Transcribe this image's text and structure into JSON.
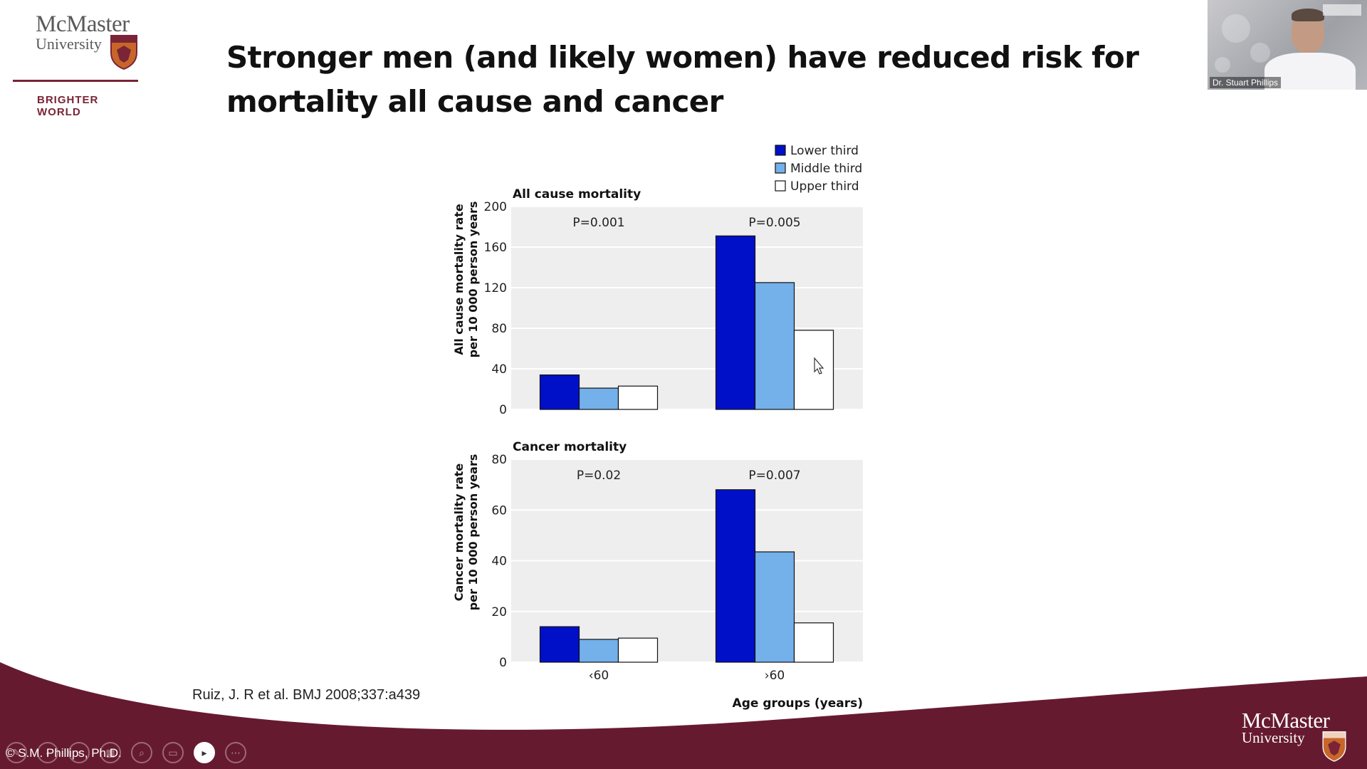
{
  "logo": {
    "name_line1": "McMaster",
    "name_line2": "University",
    "tagline": "BRIGHTER WORLD",
    "brand_color": "#7a2436"
  },
  "slide": {
    "title": "Stronger men (and likely women) have reduced risk for mortality all cause and cancer",
    "citation": "Ruiz, J. R et al. BMJ 2008;337:a439"
  },
  "webcam": {
    "name": "Dr. Stuart Phillips"
  },
  "footer": {
    "logo_line1": "McMaster",
    "logo_line2": "University",
    "copyright": "© S.M. Phillips, Ph.D."
  },
  "toolbar": {
    "icons": [
      "pen-icon",
      "back-icon",
      "forward-icon",
      "slides-icon",
      "zoom-icon",
      "subtitles-icon",
      "camera-icon",
      "more-icon"
    ]
  },
  "chart_data": [
    {
      "type": "bar",
      "title": "All cause mortality",
      "ylabel": "All cause mortality rate per 10 000 person years",
      "xlabel": "",
      "categories": [
        "<60",
        ">60"
      ],
      "ylim": [
        0,
        200
      ],
      "yticks": [
        0,
        40,
        80,
        120,
        160,
        200
      ],
      "series": [
        {
          "name": "Lower third",
          "values": [
            34,
            171
          ],
          "color": "#0010c8"
        },
        {
          "name": "Middle third",
          "values": [
            21,
            125
          ],
          "color": "#74b0ea"
        },
        {
          "name": "Upper third",
          "values": [
            23,
            78
          ],
          "color": "#ffffff"
        }
      ],
      "annotations": [
        "P=0.001",
        "P=0.005"
      ],
      "legend": "top-right",
      "grid": true
    },
    {
      "type": "bar",
      "title": "Cancer mortality",
      "ylabel": "Cancer mortality rate per 10 000 person years",
      "xlabel": "Age groups (years)",
      "categories": [
        "‹60",
        "›60"
      ],
      "ylim": [
        0,
        80
      ],
      "yticks": [
        0,
        20,
        40,
        60,
        80
      ],
      "series": [
        {
          "name": "Lower third",
          "values": [
            14,
            68
          ],
          "color": "#0010c8"
        },
        {
          "name": "Middle third",
          "values": [
            9,
            43.5
          ],
          "color": "#74b0ea"
        },
        {
          "name": "Upper third",
          "values": [
            9.5,
            15.5
          ],
          "color": "#ffffff"
        }
      ],
      "annotations": [
        "P=0.02",
        "P=0.007"
      ],
      "grid": true
    }
  ]
}
